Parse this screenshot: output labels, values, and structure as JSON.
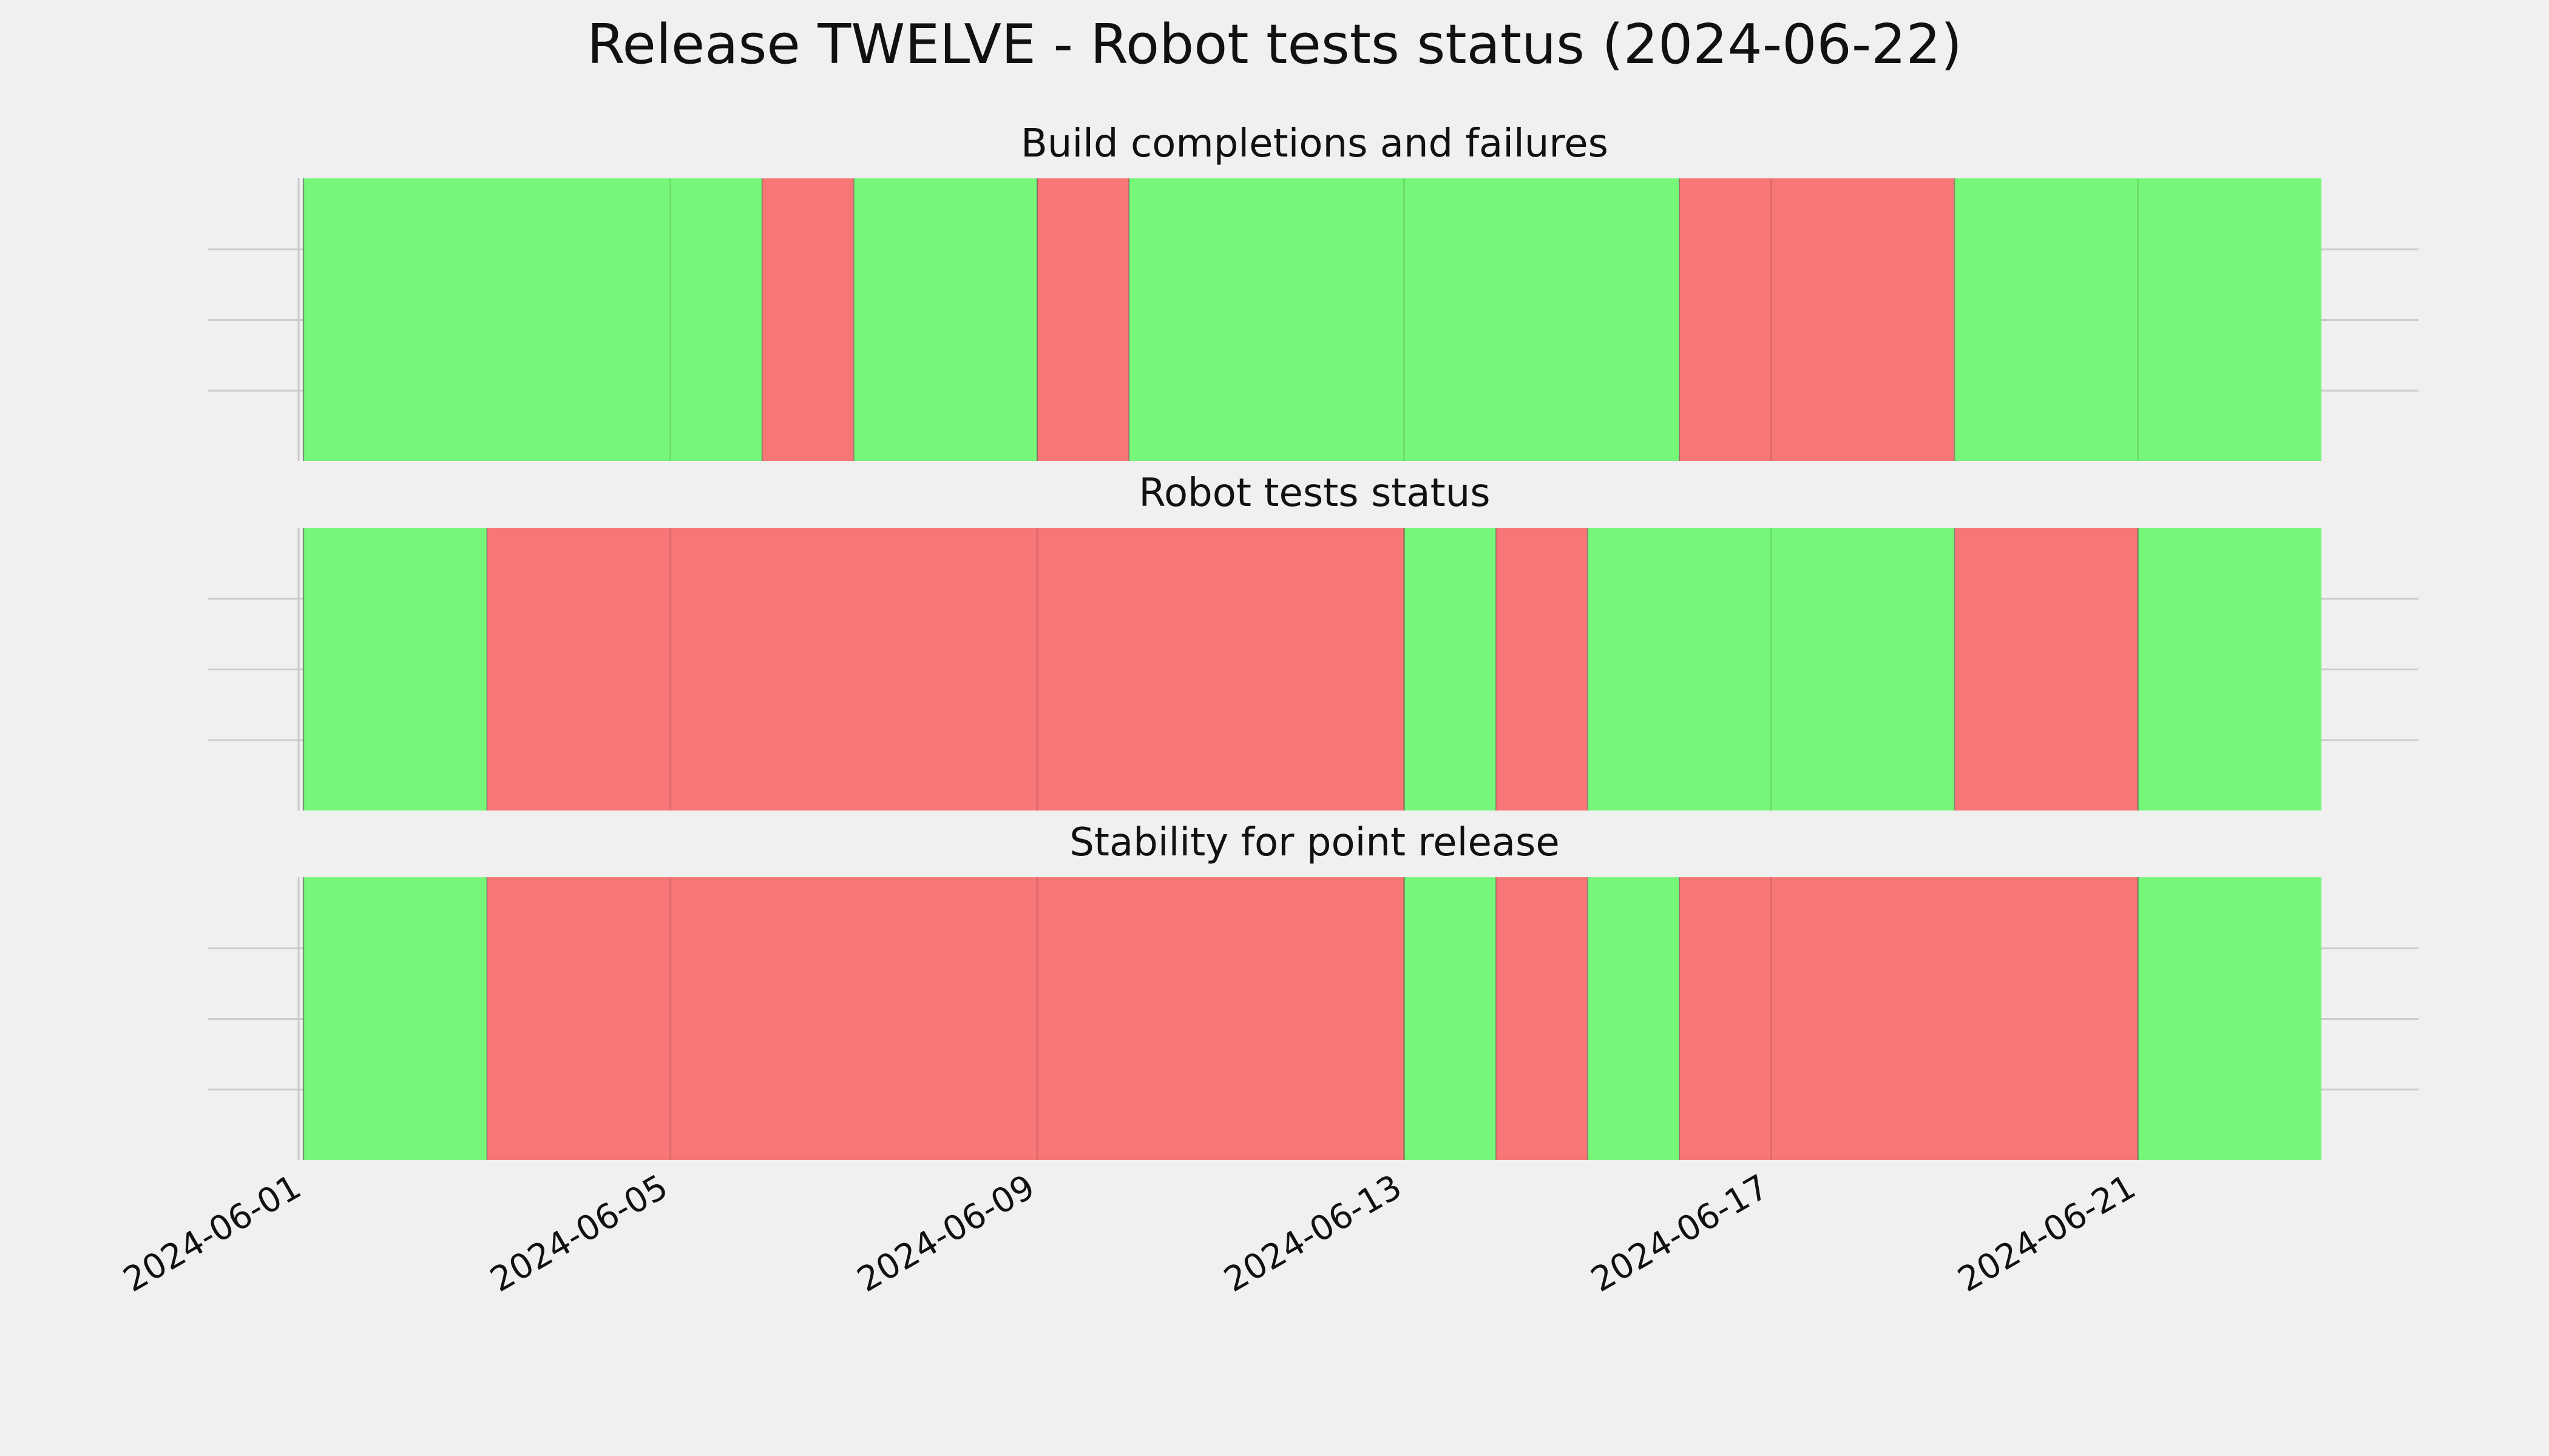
{
  "figure": {
    "title": "Release TWELVE - Robot tests status (2024-06-22)",
    "background": "#f0f0f0"
  },
  "colors": {
    "pass": "#77f77a",
    "fail": "#f77777",
    "grid": "#cccccc",
    "edge": "#555555"
  },
  "chart_data": {
    "type": "timeline",
    "x_axis": {
      "type": "date",
      "range": [
        "2024-06-01",
        "2024-06-23"
      ],
      "tick_labels": [
        "2024-06-01",
        "2024-06-05",
        "2024-06-09",
        "2024-06-13",
        "2024-06-17",
        "2024-06-21"
      ]
    },
    "panels": [
      {
        "title": "Build completions and failures",
        "segments": [
          {
            "start": "2024-06-01",
            "end": "2024-06-06",
            "status": "pass"
          },
          {
            "start": "2024-06-06",
            "end": "2024-06-07",
            "status": "fail"
          },
          {
            "start": "2024-06-07",
            "end": "2024-06-09",
            "status": "pass"
          },
          {
            "start": "2024-06-09",
            "end": "2024-06-10",
            "status": "fail"
          },
          {
            "start": "2024-06-10",
            "end": "2024-06-16",
            "status": "pass"
          },
          {
            "start": "2024-06-16",
            "end": "2024-06-19",
            "status": "fail"
          },
          {
            "start": "2024-06-19",
            "end": "2024-06-23",
            "status": "pass"
          }
        ]
      },
      {
        "title": "Robot tests status",
        "segments": [
          {
            "start": "2024-06-01",
            "end": "2024-06-03",
            "status": "pass"
          },
          {
            "start": "2024-06-03",
            "end": "2024-06-13",
            "status": "fail"
          },
          {
            "start": "2024-06-13",
            "end": "2024-06-14",
            "status": "pass"
          },
          {
            "start": "2024-06-14",
            "end": "2024-06-15",
            "status": "fail"
          },
          {
            "start": "2024-06-15",
            "end": "2024-06-19",
            "status": "pass"
          },
          {
            "start": "2024-06-19",
            "end": "2024-06-21",
            "status": "fail"
          },
          {
            "start": "2024-06-21",
            "end": "2024-06-23",
            "status": "pass"
          }
        ]
      },
      {
        "title": "Stability for point release",
        "segments": [
          {
            "start": "2024-06-01",
            "end": "2024-06-03",
            "status": "pass"
          },
          {
            "start": "2024-06-03",
            "end": "2024-06-13",
            "status": "fail"
          },
          {
            "start": "2024-06-13",
            "end": "2024-06-14",
            "status": "pass"
          },
          {
            "start": "2024-06-14",
            "end": "2024-06-15",
            "status": "fail"
          },
          {
            "start": "2024-06-15",
            "end": "2024-06-16",
            "status": "pass"
          },
          {
            "start": "2024-06-16",
            "end": "2024-06-21",
            "status": "fail"
          },
          {
            "start": "2024-06-21",
            "end": "2024-06-23",
            "status": "pass"
          }
        ]
      }
    ],
    "grid": true,
    "legend": null
  }
}
